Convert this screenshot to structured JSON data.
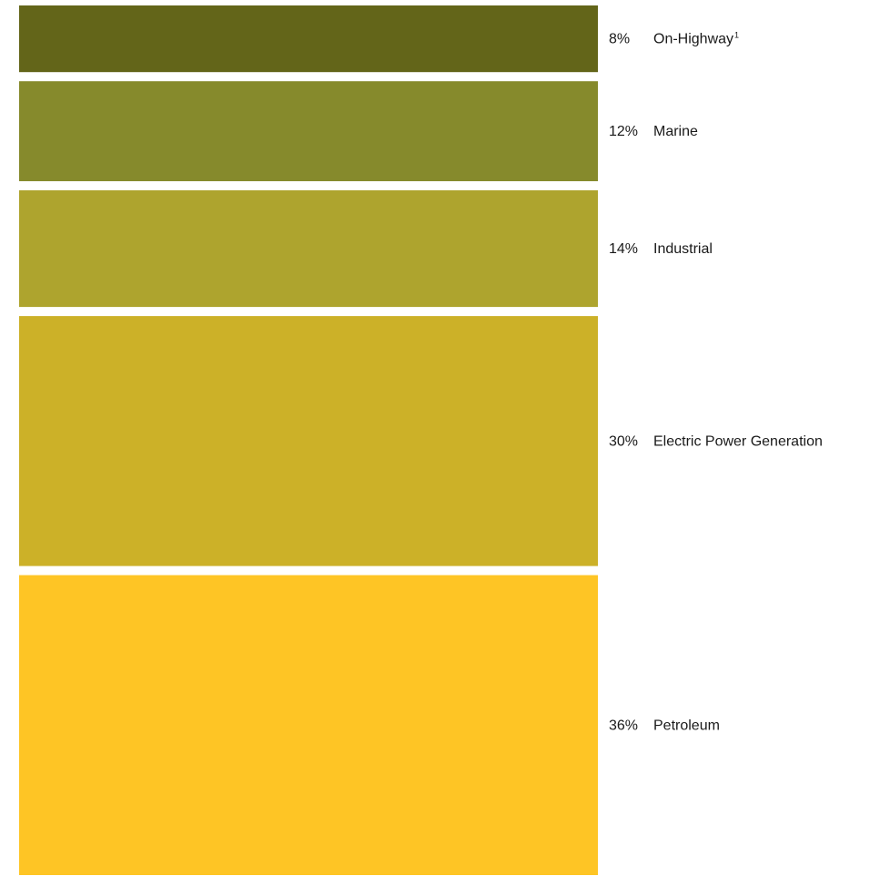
{
  "chart_data": {
    "type": "bar",
    "stacked": true,
    "orientation": "vertical-stack",
    "unit": "%",
    "segments": [
      {
        "name": "On-Highway",
        "footnote": "1",
        "percent_label": "8%",
        "value": 8,
        "color": "#636519"
      },
      {
        "name": "Marine",
        "footnote": "",
        "percent_label": "12%",
        "value": 12,
        "color": "#868A2C"
      },
      {
        "name": "Industrial",
        "footnote": "",
        "percent_label": "14%",
        "value": 14,
        "color": "#AEA42E"
      },
      {
        "name": "Electric Power Generation",
        "footnote": "",
        "percent_label": "30%",
        "value": 30,
        "color": "#CCB128"
      },
      {
        "name": "Petroleum",
        "footnote": "",
        "percent_label": "36%",
        "value": 36,
        "color": "#FEC525"
      }
    ]
  }
}
